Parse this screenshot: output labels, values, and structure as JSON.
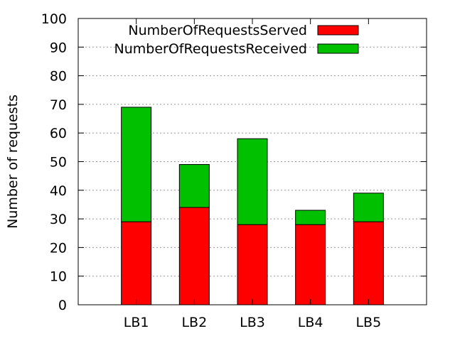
{
  "chart_data": {
    "type": "bar",
    "stacked": true,
    "categories": [
      "LB1",
      "LB2",
      "LB3",
      "LB4",
      "LB5"
    ],
    "series": [
      {
        "name": "NumberOfRequestsServed",
        "values": [
          29,
          34,
          28,
          28,
          29
        ],
        "color": "#ff0000"
      },
      {
        "name": "NumberOfRequestsReceived",
        "values": [
          40,
          15,
          30,
          5,
          10
        ],
        "color": "#00c000"
      }
    ],
    "totals": [
      69,
      49,
      58,
      33,
      39
    ],
    "title": "",
    "xlabel": "",
    "ylabel": "Number of requests",
    "ylim": [
      0,
      100
    ],
    "yticks": [
      "0",
      "10",
      "20",
      "30",
      "40",
      "50",
      "60",
      "70",
      "80",
      "90",
      "100"
    ],
    "grid": true,
    "legend_position": "top-right"
  }
}
